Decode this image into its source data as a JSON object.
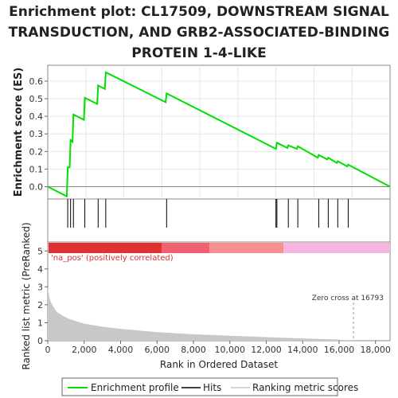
{
  "title_lines": [
    "Enrichment plot: CL17509, DOWNSTREAM SIGNAL",
    "TRANSDUCTION, AND GRB2-ASSOCIATED-BINDING",
    "PROTEIN 1-4-LIKE"
  ],
  "legend": {
    "profile": "Enrichment profile",
    "hits": "Hits",
    "metric": "Ranking metric scores"
  },
  "colors": {
    "profile": "#00e000",
    "hits": "#000000",
    "metric_fill": "#c8c8c8",
    "zero_line": "#888888",
    "pos_band": "#e03030",
    "neg_band": "#f8b4e0"
  },
  "chart_data": [
    {
      "type": "line",
      "ylabel": "Enrichment score (ES)",
      "xlim": [
        0,
        18000
      ],
      "ylim": [
        -0.07,
        0.69
      ],
      "yticks": [
        "0.0",
        "0.1",
        "0.2",
        "0.3",
        "0.4",
        "0.5",
        "0.6"
      ],
      "grid": true,
      "series": [
        {
          "x": [
            0,
            1000,
            1050,
            1150,
            1200,
            1300,
            1350,
            1900,
            1950,
            2600,
            2650,
            3000,
            3050,
            6200,
            6250,
            12000,
            12050,
            12600,
            12650,
            13100,
            13150,
            14200,
            14250,
            14700,
            14750,
            15200,
            15250,
            15750,
            15800,
            18000
          ],
          "y": [
            0.0,
            -0.055,
            0.11,
            0.11,
            0.265,
            0.255,
            0.41,
            0.38,
            0.505,
            0.47,
            0.575,
            0.555,
            0.65,
            0.48,
            0.53,
            0.215,
            0.25,
            0.22,
            0.235,
            0.215,
            0.23,
            0.165,
            0.18,
            0.155,
            0.165,
            0.135,
            0.145,
            0.115,
            0.125,
            0.0
          ]
        }
      ]
    },
    {
      "type": "scatter",
      "name": "hits",
      "x": [
        1050,
        1200,
        1350,
        1950,
        2650,
        3050,
        6250,
        12000,
        12050,
        12650,
        13150,
        14250,
        14750,
        15250,
        15800
      ]
    },
    {
      "type": "area",
      "xlabel": "Rank in Ordered Dataset",
      "ylabel": "Ranked list metric (PreRanked)",
      "xlim": [
        0,
        18800
      ],
      "ylim": [
        0,
        5.5
      ],
      "xticks": [
        "0",
        "2,000",
        "4,000",
        "6,000",
        "8,000",
        "10,000",
        "12,000",
        "14,000",
        "16,000",
        "18,000"
      ],
      "yticks": [
        "0",
        "1",
        "2",
        "3",
        "4",
        "5"
      ],
      "x": [
        0,
        50,
        150,
        300,
        500,
        800,
        1200,
        2000,
        3000,
        4000,
        6000,
        8000,
        10000,
        12000,
        14000,
        16000,
        16793,
        18000
      ],
      "y": [
        3.0,
        2.6,
        2.2,
        1.9,
        1.6,
        1.4,
        1.2,
        0.95,
        0.78,
        0.66,
        0.48,
        0.36,
        0.28,
        0.2,
        0.13,
        0.06,
        0.0,
        0.0
      ],
      "annotations": [
        "'na_pos' (positively correlated)",
        "Zero cross at 16793"
      ],
      "zero_cross": 16793
    }
  ]
}
